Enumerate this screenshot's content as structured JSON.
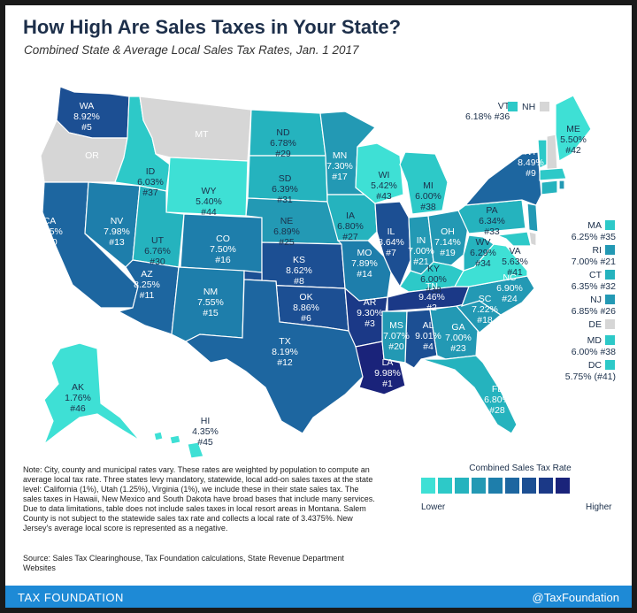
{
  "title": "How High Are Sales Taxes in Your State?",
  "subtitle": "Combined State & Average Local Sales Tax Rates, Jan. 1 2017",
  "colors": {
    "none": "#d6d6d6",
    "scale": [
      "#3ee0d5",
      "#2dc9c8",
      "#25b3be",
      "#2399b4",
      "#1e7eab",
      "#1d66a0",
      "#1c4f93",
      "#1b3987",
      "#1a237a"
    ],
    "footer": "#1e8ad6"
  },
  "states": {
    "WA": {
      "name": "WA",
      "rate": "8.92%",
      "rank": "#5"
    },
    "OR": {
      "name": "OR",
      "rate": "",
      "rank": ""
    },
    "CA": {
      "name": "CA",
      "rate": "8.25%",
      "rank": "#10"
    },
    "NV": {
      "name": "NV",
      "rate": "7.98%",
      "rank": "#13"
    },
    "ID": {
      "name": "ID",
      "rate": "6.03%",
      "rank": "#37"
    },
    "MT": {
      "name": "MT",
      "rate": "",
      "rank": ""
    },
    "WY": {
      "name": "WY",
      "rate": "5.40%",
      "rank": "#44"
    },
    "UT": {
      "name": "UT",
      "rate": "6.76%",
      "rank": "#30"
    },
    "AZ": {
      "name": "AZ",
      "rate": "8.25%",
      "rank": "#11"
    },
    "CO": {
      "name": "CO",
      "rate": "7.50%",
      "rank": "#16"
    },
    "NM": {
      "name": "NM",
      "rate": "7.55%",
      "rank": "#15"
    },
    "ND": {
      "name": "ND",
      "rate": "6.78%",
      "rank": "#29"
    },
    "SD": {
      "name": "SD",
      "rate": "6.39%",
      "rank": "#31"
    },
    "NE": {
      "name": "NE",
      "rate": "6.89%",
      "rank": "#25"
    },
    "KS": {
      "name": "KS",
      "rate": "8.62%",
      "rank": "#8"
    },
    "OK": {
      "name": "OK",
      "rate": "8.86%",
      "rank": "#6"
    },
    "TX": {
      "name": "TX",
      "rate": "8.19%",
      "rank": "#12"
    },
    "MN": {
      "name": "MN",
      "rate": "7.30%",
      "rank": "#17"
    },
    "IA": {
      "name": "IA",
      "rate": "6.80%",
      "rank": "#27"
    },
    "MO": {
      "name": "MO",
      "rate": "7.89%",
      "rank": "#14"
    },
    "AR": {
      "name": "AR",
      "rate": "9.30%",
      "rank": "#3"
    },
    "LA": {
      "name": "LA",
      "rate": "9.98%",
      "rank": "#1"
    },
    "WI": {
      "name": "WI",
      "rate": "5.42%",
      "rank": "#43"
    },
    "IL": {
      "name": "IL",
      "rate": "8.64%",
      "rank": "#7"
    },
    "MI": {
      "name": "MI",
      "rate": "6.00%",
      "rank": "#38"
    },
    "IN": {
      "name": "IN",
      "rate": "7.00%",
      "rank": "#21"
    },
    "OH": {
      "name": "OH",
      "rate": "7.14%",
      "rank": "#19"
    },
    "KY": {
      "name": "KY",
      "rate": "6.00%",
      "rank": "#38"
    },
    "TN": {
      "name": "TN",
      "rate": "9.46%",
      "rank": "#2"
    },
    "MS": {
      "name": "MS",
      "rate": "7.07%",
      "rank": "#20"
    },
    "AL": {
      "name": "AL",
      "rate": "9.01%",
      "rank": "#4"
    },
    "GA": {
      "name": "GA",
      "rate": "7.00%",
      "rank": "#23"
    },
    "FL": {
      "name": "FL",
      "rate": "6.80%",
      "rank": "#28"
    },
    "SC": {
      "name": "SC",
      "rate": "7.22%",
      "rank": "#18"
    },
    "NC": {
      "name": "NC",
      "rate": "6.90%",
      "rank": "#24"
    },
    "VA": {
      "name": "VA",
      "rate": "5.63%",
      "rank": "#41"
    },
    "WV": {
      "name": "WV",
      "rate": "6.29%",
      "rank": "#34"
    },
    "PA": {
      "name": "PA",
      "rate": "6.34%",
      "rank": "#33"
    },
    "NY": {
      "name": "NY",
      "rate": "8.49%",
      "rank": "#9"
    },
    "ME": {
      "name": "ME",
      "rate": "5.50%",
      "rank": "#42"
    },
    "AK": {
      "name": "AK",
      "rate": "1.76%",
      "rank": "#46"
    },
    "HI": {
      "name": "HI",
      "rate": "4.35%",
      "rank": "#45"
    }
  },
  "side_labels": {
    "VT": {
      "name": "VT",
      "line": "6.18% #36"
    },
    "NH": {
      "name": "NH"
    },
    "MA": {
      "name": "MA",
      "line": "6.25% #35"
    },
    "RI": {
      "name": "RI",
      "line": "7.00% #21"
    },
    "CT": {
      "name": "CT",
      "line": "6.35% #32"
    },
    "NJ": {
      "name": "NJ",
      "line": "6.85% #26"
    },
    "DE": {
      "name": "DE"
    },
    "MD": {
      "name": "MD",
      "line": "6.00% #38"
    },
    "DC": {
      "name": "DC",
      "line": "5.75% (#41)"
    }
  },
  "note": "Note: City, county and municipal rates vary. These rates are weighted by population to compute an average local tax rate. Three states levy mandatory, statewide, local add-on sales taxes at the state level: California (1%), Utah (1.25%), Virginia (1%), we include these in their state sales tax. The sales taxes in Hawaii, New Mexico and South Dakota have broad bases that include many services. Due to data limitations, table does not include sales taxes in local resort areas in Montana. Salem County is not subject to the statewide sales tax rate and collects a local rate of 3.4375%. New Jersey's average local score is represented as a negative.",
  "source": "Source: Sales Tax Clearinghouse, Tax Foundation calculations, State Revenue Department Websites",
  "legend": {
    "title": "Combined Sales Tax Rate",
    "low": "Lower",
    "high": "Higher"
  },
  "footer": {
    "left": "TAX FOUNDATION",
    "right": "@TaxFoundation"
  }
}
